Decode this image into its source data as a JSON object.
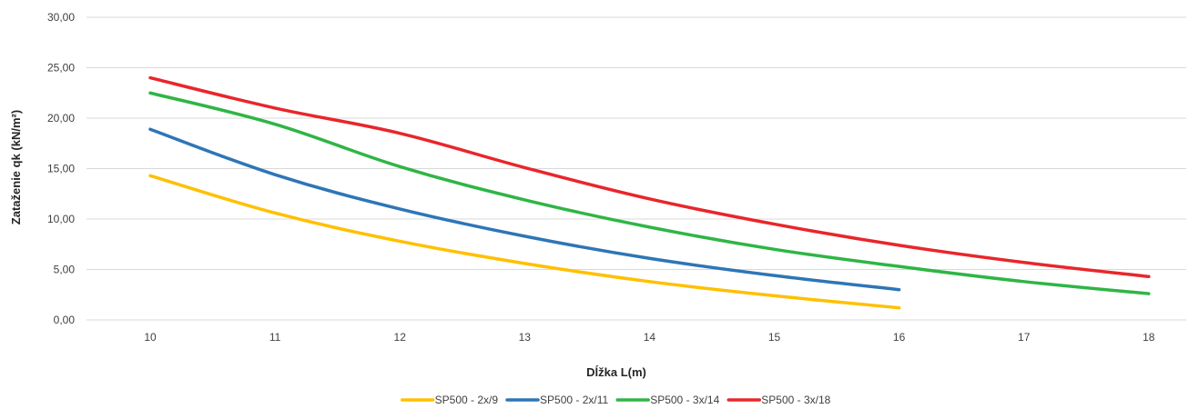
{
  "chart_data": {
    "type": "line",
    "title": "",
    "xlabel": "Dĺžka L(m)",
    "ylabel": "Zataženie qk (kN/m²)",
    "x": [
      10,
      11,
      12,
      13,
      14,
      15,
      16,
      17,
      18
    ],
    "x_tick_labels": [
      "10",
      "11",
      "12",
      "13",
      "14",
      "15",
      "16",
      "17",
      "18"
    ],
    "ylim": [
      0,
      30
    ],
    "y_ticks": [
      0,
      5,
      10,
      15,
      20,
      25,
      30
    ],
    "y_tick_labels": [
      "0,00",
      "5,00",
      "10,00",
      "15,00",
      "20,00",
      "25,00",
      "30,00"
    ],
    "grid": "horizontal",
    "legend_position": "bottom",
    "series": [
      {
        "name": "SP500 - 2x/9",
        "color": "#FFC000",
        "values": [
          14.3,
          10.6,
          7.8,
          5.6,
          3.8,
          2.4,
          1.2,
          null,
          null
        ]
      },
      {
        "name": "SP500 - 2x/11",
        "color": "#2E75B6",
        "values": [
          18.9,
          14.4,
          11.0,
          8.3,
          6.1,
          4.4,
          3.0,
          null,
          null
        ]
      },
      {
        "name": "SP500 - 3x/14",
        "color": "#2FB545",
        "values": [
          22.5,
          19.4,
          15.2,
          11.9,
          9.2,
          7.0,
          5.3,
          3.8,
          2.6
        ]
      },
      {
        "name": "SP500 - 3x/18",
        "color": "#E8262B",
        "values": [
          24.0,
          21.0,
          18.5,
          15.1,
          12.0,
          9.5,
          7.4,
          5.7,
          4.3
        ]
      }
    ]
  }
}
